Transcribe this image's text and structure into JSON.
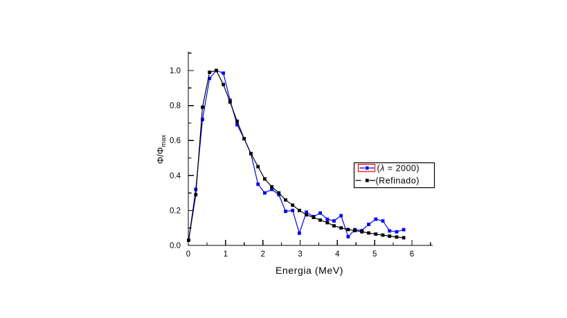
{
  "window": {
    "background": "#ffffff"
  },
  "chart_data": {
    "type": "line",
    "title": "",
    "xlabel": "Energia (MeV)",
    "ylabel": {
      "main": "Φ/Φ",
      "subscript": "max"
    },
    "xlim": [
      0,
      6.5
    ],
    "ylim": [
      0,
      1.1
    ],
    "grid": false,
    "x_major_ticks": [
      0,
      1,
      2,
      3,
      4,
      5,
      6
    ],
    "x_tick_labels": [
      "0",
      "1",
      "2",
      "3",
      "4",
      "5",
      "6"
    ],
    "x_minor_ticks": [
      0.5,
      1.5,
      2.5,
      3.5,
      4.5,
      5.5,
      6.5
    ],
    "y_major_ticks": [
      0.0,
      0.2,
      0.4,
      0.6,
      0.8,
      1.0
    ],
    "y_tick_labels": [
      "0.0",
      "0.2",
      "0.4",
      "0.6",
      "0.8",
      "1.0"
    ],
    "y_minor_ticks": [
      0.1,
      0.3,
      0.5,
      0.7,
      0.9,
      1.1
    ],
    "x": [
      0.01,
      0.2,
      0.38,
      0.57,
      0.75,
      0.94,
      1.12,
      1.31,
      1.5,
      1.68,
      1.87,
      2.05,
      2.24,
      2.43,
      2.61,
      2.8,
      2.98,
      3.17,
      3.36,
      3.54,
      3.73,
      3.91,
      4.1,
      4.29,
      4.47,
      4.66,
      4.84,
      5.03,
      5.22,
      5.4,
      5.59,
      5.78
    ],
    "series": [
      {
        "name": "(λ = 2000)",
        "color": "#0000ee",
        "marker": "square",
        "line_style": "solid",
        "selected_in_legend": true,
        "values": [
          0.03,
          0.32,
          0.72,
          0.955,
          1.0,
          0.985,
          0.83,
          0.69,
          0.61,
          0.525,
          0.35,
          0.3,
          0.32,
          0.29,
          0.195,
          0.2,
          0.07,
          0.19,
          0.165,
          0.185,
          0.15,
          0.14,
          0.17,
          0.05,
          0.09,
          0.085,
          0.12,
          0.15,
          0.14,
          0.083,
          0.078,
          0.09
        ]
      },
      {
        "name": "(Refinado)",
        "color": "#000000",
        "marker": "square",
        "line_style": "solid",
        "selected_in_legend": false,
        "values": [
          0.03,
          0.29,
          0.79,
          0.99,
          1.0,
          0.92,
          0.82,
          0.71,
          0.61,
          0.525,
          0.45,
          0.38,
          0.335,
          0.3,
          0.26,
          0.23,
          0.2,
          0.175,
          0.16,
          0.145,
          0.13,
          0.112,
          0.1,
          0.091,
          0.085,
          0.078,
          0.071,
          0.065,
          0.059,
          0.053,
          0.048,
          0.044
        ]
      }
    ],
    "legend": {
      "position": "middle-right",
      "border_color": "#000000",
      "background": "#ffffff",
      "selection_box_color": "#ff0000"
    }
  }
}
